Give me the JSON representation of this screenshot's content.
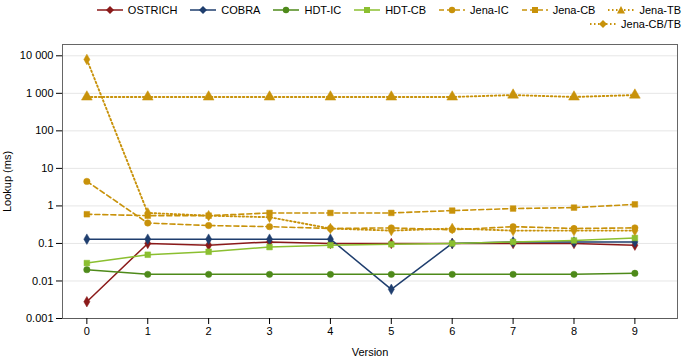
{
  "chart_data": {
    "type": "line",
    "x": [
      0,
      1,
      2,
      3,
      4,
      5,
      6,
      7,
      8,
      9
    ],
    "xlabel": "Version",
    "ylabel": "Lookup (ms)",
    "xlim": [
      -0.4,
      9.7
    ],
    "xticks": [
      0,
      1,
      2,
      3,
      4,
      5,
      6,
      7,
      8,
      9
    ],
    "ylim": [
      0.001,
      20000
    ],
    "yticks": [
      0.001,
      0.01,
      0.1,
      1,
      10,
      100,
      {
        "value": 1000,
        "label": "1 000"
      },
      {
        "value": 10000,
        "label": "10 000"
      }
    ],
    "log": "y",
    "grid": true,
    "legend": "upper right",
    "series": [
      {
        "name": "OSTRICH",
        "color": "#8B1A1A",
        "marker": "diamond",
        "line_style": "solid",
        "values": [
          0.0028,
          0.1,
          0.09,
          0.11,
          0.1,
          0.1,
          0.1,
          0.1,
          0.1,
          0.09
        ]
      },
      {
        "name": "COBRA",
        "color": "#1F3E6E",
        "marker": "diamond",
        "line_style": "solid",
        "values": [
          0.13,
          0.13,
          0.13,
          0.13,
          0.13,
          0.006,
          0.1,
          0.11,
          0.11,
          0.11
        ]
      },
      {
        "name": "HDT-IC",
        "color": "#4E8A1A",
        "marker": "circle",
        "line_style": "solid",
        "values": [
          0.02,
          0.015,
          0.015,
          0.015,
          0.015,
          0.015,
          0.015,
          0.015,
          0.015,
          0.016
        ]
      },
      {
        "name": "HDT-CB",
        "color": "#8BBF30",
        "marker": "square",
        "line_style": "solid",
        "values": [
          0.03,
          0.05,
          0.06,
          0.08,
          0.09,
          0.095,
          0.1,
          0.11,
          0.12,
          0.14
        ]
      },
      {
        "name": "Jena-IC",
        "color": "#C8920A",
        "marker": "circle",
        "line_style": "dashed",
        "values": [
          4.5,
          0.35,
          0.3,
          0.28,
          0.25,
          0.26,
          0.23,
          0.28,
          0.25,
          0.26
        ]
      },
      {
        "name": "Jena-CB",
        "color": "#C8920A",
        "marker": "square",
        "line_style": "dashed",
        "values": [
          0.6,
          0.55,
          0.55,
          0.65,
          0.65,
          0.65,
          0.75,
          0.85,
          0.9,
          1.1
        ]
      },
      {
        "name": "Jena-TB",
        "color": "#C8920A",
        "marker": "triangle",
        "line_style": "dotted",
        "values": [
          800,
          800,
          800,
          800,
          800,
          800,
          800,
          900,
          800,
          900
        ]
      },
      {
        "name": "Jena-CB/TB",
        "color": "#C8920A",
        "marker": "diamond",
        "line_style": "dotted",
        "values": [
          8000,
          0.65,
          0.55,
          0.5,
          0.25,
          0.22,
          0.25,
          0.22,
          0.22,
          0.22
        ]
      }
    ]
  }
}
